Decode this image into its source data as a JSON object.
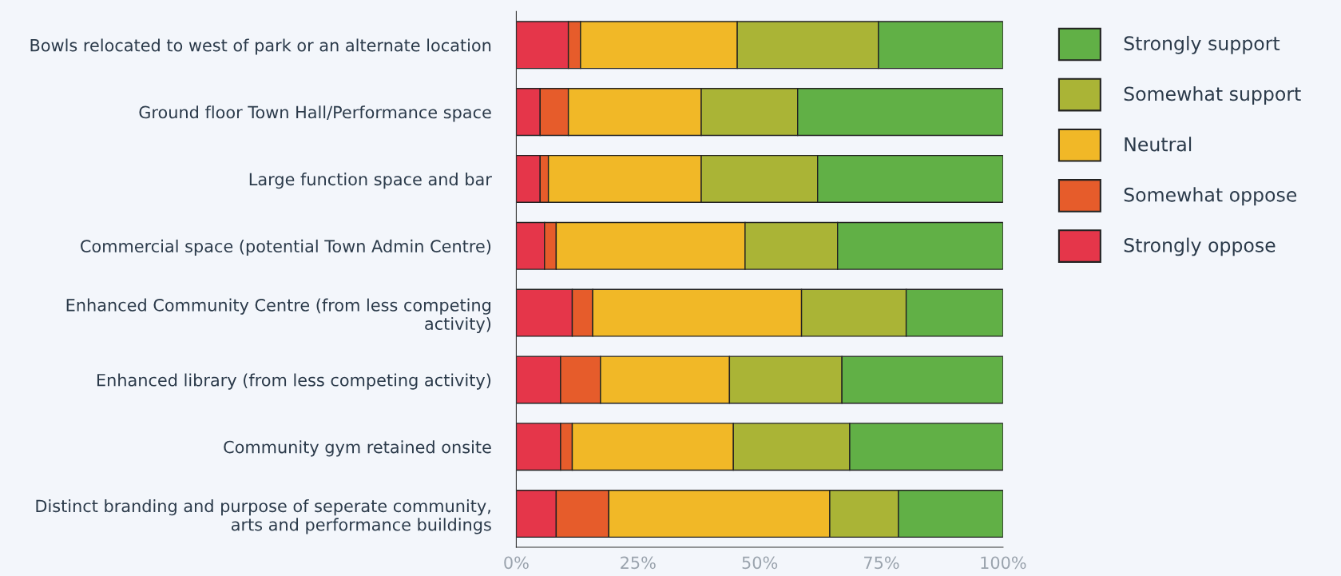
{
  "chart_data": {
    "type": "bar",
    "orientation": "horizontal",
    "stacked": true,
    "categories": [
      "Bowls relocated to west of park or an alternate location",
      "Ground floor Town Hall/Performance space",
      "Large function space and bar",
      "Commercial space (potential Town Admin Centre)",
      "Enhanced Community Centre (from less competing\nactivity)",
      "Enhanced library (from less competing activity)",
      "Community gym retained onsite",
      "Distinct branding and purpose of seperate community,\narts and performance buildings"
    ],
    "series": [
      {
        "name": "Strongly oppose",
        "color": "#e5364a",
        "values": [
          10.7,
          4.9,
          4.9,
          5.8,
          11.5,
          9.1,
          9.1,
          8.2
        ]
      },
      {
        "name": "Somewhat oppose",
        "color": "#e65c2b",
        "values": [
          2.5,
          5.8,
          1.7,
          2.4,
          4.2,
          8.2,
          2.4,
          10.8
        ]
      },
      {
        "name": "Neutral",
        "color": "#f1b827",
        "values": [
          32.2,
          27.3,
          31.4,
          38.8,
          42.9,
          26.5,
          33.1,
          45.4
        ]
      },
      {
        "name": "Somewhat support",
        "color": "#aab436",
        "values": [
          29.0,
          19.8,
          23.9,
          19.0,
          21.5,
          23.1,
          23.9,
          14.1
        ]
      },
      {
        "name": "Strongly support",
        "color": "#61b046",
        "values": [
          25.6,
          42.2,
          38.1,
          34.0,
          19.9,
          33.1,
          31.5,
          21.5
        ]
      }
    ],
    "xlim": [
      0,
      100
    ],
    "xticks": [
      {
        "value": 0,
        "label": "0%"
      },
      {
        "value": 25,
        "label": "25%"
      },
      {
        "value": 50,
        "label": "50%"
      },
      {
        "value": 75,
        "label": "75%"
      },
      {
        "value": 100,
        "label": "100%"
      }
    ],
    "grid": false,
    "legend": "top right"
  }
}
